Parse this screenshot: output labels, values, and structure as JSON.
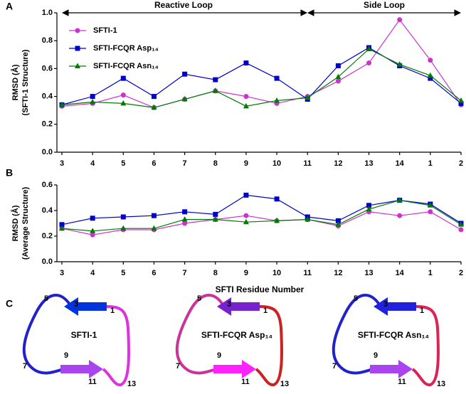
{
  "chart_data": [
    {
      "type": "line",
      "panel_label": "A",
      "annotations": [
        "Reactive Loop",
        "Side Loop"
      ],
      "y_label": [
        "RMSD (Å)",
        "(SFTI-1 Structure)"
      ],
      "categories": [
        "3",
        "4",
        "5",
        "6",
        "7",
        "8",
        "9",
        "10",
        "11",
        "12",
        "13",
        "14",
        "1",
        "2"
      ],
      "ylim": [
        0,
        1.0
      ],
      "yticks": [
        {
          "value": 0,
          "label": "0.0"
        },
        0.2,
        0.4,
        0.6,
        0.8,
        {
          "value": 1.0,
          "label": "1.0"
        }
      ],
      "legend": "upper left",
      "series": [
        {
          "name": "SFTI-1",
          "color": "#cc33cc",
          "marker": "circle",
          "values": [
            0.33,
            0.35,
            0.41,
            0.32,
            0.38,
            0.44,
            0.4,
            0.35,
            0.4,
            0.51,
            0.64,
            0.95,
            0.66,
            0.34
          ]
        },
        {
          "name": "SFTI-FCQR Asp₁₄",
          "color": "#0000cc",
          "marker": "square",
          "values": [
            0.34,
            0.4,
            0.53,
            0.4,
            0.56,
            0.52,
            0.64,
            0.53,
            0.38,
            0.62,
            0.75,
            0.62,
            0.53,
            0.35
          ]
        },
        {
          "name": "SFTI-FCQR Asn₁₄",
          "color": "#007a00",
          "marker": "triangle",
          "values": [
            0.34,
            0.36,
            0.35,
            0.32,
            0.38,
            0.44,
            0.33,
            0.37,
            0.39,
            0.54,
            0.74,
            0.63,
            0.55,
            0.37
          ]
        }
      ]
    },
    {
      "type": "line",
      "panel_label": "B",
      "x_label": "SFTI Residue Number",
      "y_label": [
        "RMSD (Å)",
        "(Average Structure)"
      ],
      "categories": [
        "3",
        "4",
        "5",
        "6",
        "7",
        "8",
        "9",
        "10",
        "11",
        "12",
        "13",
        "14",
        "1",
        "2"
      ],
      "ylim": [
        0,
        0.6
      ],
      "yticks": [
        {
          "value": 0,
          "label": "0.0"
        },
        0.2,
        0.4,
        0.6
      ],
      "series": [
        {
          "name": "SFTI-1",
          "color": "#cc33cc",
          "marker": "circle",
          "values": [
            0.26,
            0.21,
            0.25,
            0.25,
            0.3,
            0.33,
            0.36,
            0.32,
            0.33,
            0.28,
            0.39,
            0.36,
            0.39,
            0.25
          ]
        },
        {
          "name": "SFTI-FCQR Asp₁₄",
          "color": "#0000cc",
          "marker": "square",
          "values": [
            0.29,
            0.34,
            0.35,
            0.36,
            0.39,
            0.37,
            0.52,
            0.49,
            0.35,
            0.32,
            0.44,
            0.48,
            0.45,
            0.3
          ]
        },
        {
          "name": "SFTI-FCQR Asn₁₄",
          "color": "#007a00",
          "marker": "triangle",
          "values": [
            0.26,
            0.24,
            0.26,
            0.26,
            0.33,
            0.33,
            0.31,
            0.32,
            0.33,
            0.29,
            0.41,
            0.48,
            0.44,
            0.29
          ]
        }
      ]
    }
  ],
  "panel_c": {
    "label": "C",
    "structures": [
      {
        "name": "SFTI-1",
        "residues": [
          "5",
          "3",
          "1",
          "7",
          "9",
          "11",
          "13"
        ]
      },
      {
        "name": "SFTI-FCQR Asp₁₄",
        "residues": [
          "5",
          "3",
          "1",
          "7",
          "9",
          "11",
          "13"
        ]
      },
      {
        "name": "SFTI-FCQR Asn₁₄",
        "residues": [
          "5",
          "3",
          "1",
          "7",
          "9",
          "11",
          "13"
        ]
      }
    ]
  }
}
